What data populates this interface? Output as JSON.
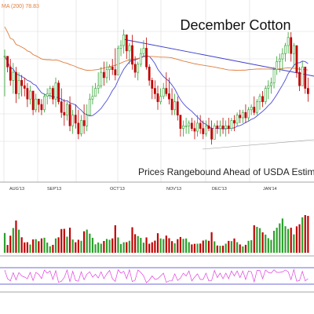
{
  "chart_data": {
    "type": "candlestick",
    "title": "December Cotton",
    "annotation": "Prices Rangebound Ahead of USDA Estimates",
    "legend_text": "MA (200) 78.83",
    "x_ticks": [
      "AUG'13",
      "SEP'13",
      "OCT'13",
      "NOV'13",
      "DEC'13",
      "JAN'14"
    ],
    "grid": true,
    "colors": {
      "up": "#2ca02c",
      "down": "#c00000",
      "ma_long": "#e07b39",
      "ma_short": "#4a4ad8",
      "trendline": "#3a3acc",
      "volume_up": "#2ca02c",
      "volume_down": "#c00000",
      "oscillator": "#e040e0",
      "oscillator_bands": "#3a3acc"
    },
    "series": [
      {
        "name": "price",
        "kind": "ohlc",
        "values": [
          [
            0,
            145,
            110,
            140
          ],
          [
            1,
            140,
            128,
            132
          ],
          [
            2,
            138,
            118,
            122
          ],
          [
            3,
            135,
            112,
            128
          ],
          [
            4,
            132,
            105,
            112
          ],
          [
            5,
            128,
            108,
            122
          ],
          [
            6,
            126,
            110,
            118
          ],
          [
            7,
            124,
            110,
            116
          ],
          [
            8,
            120,
            102,
            108
          ],
          [
            9,
            118,
            104,
            114
          ],
          [
            10,
            114,
            96,
            100
          ],
          [
            11,
            112,
            98,
            108
          ],
          [
            12,
            108,
            98,
            104
          ],
          [
            13,
            108,
            96,
            100
          ],
          [
            14,
            112,
            98,
            110
          ],
          [
            15,
            116,
            104,
            112
          ],
          [
            16,
            118,
            108,
            116
          ],
          [
            17,
            118,
            104,
            108
          ],
          [
            18,
            124,
            102,
            120
          ],
          [
            19,
            122,
            104,
            106
          ],
          [
            20,
            116,
            94,
            98
          ],
          [
            21,
            108,
            88,
            96
          ],
          [
            22,
            106,
            92,
            104
          ],
          [
            23,
            110,
            84,
            88
          ],
          [
            24,
            100,
            82,
            96
          ],
          [
            25,
            104,
            86,
            90
          ],
          [
            26,
            100,
            78,
            82
          ],
          [
            27,
            96,
            80,
            92
          ],
          [
            28,
            104,
            82,
            88
          ],
          [
            29,
            104,
            84,
            96
          ],
          [
            30,
            112,
            96,
            108
          ],
          [
            31,
            118,
            104,
            110
          ],
          [
            32,
            120,
            110,
            116
          ],
          [
            33,
            128,
            112,
            118
          ],
          [
            34,
            132,
            116,
            128
          ],
          [
            35,
            136,
            118,
            124
          ],
          [
            36,
            136,
            120,
            130
          ],
          [
            37,
            134,
            122,
            132
          ],
          [
            38,
            138,
            126,
            130
          ],
          [
            39,
            146,
            122,
            126
          ],
          [
            40,
            148,
            132,
            146
          ],
          [
            41,
            152,
            140,
            148
          ],
          [
            42,
            160,
            142,
            156
          ],
          [
            43,
            156,
            138,
            144
          ],
          [
            44,
            150,
            134,
            148
          ],
          [
            45,
            156,
            130,
            134
          ],
          [
            46,
            140,
            124,
            128
          ],
          [
            47,
            136,
            122,
            134
          ],
          [
            48,
            146,
            132,
            142
          ],
          [
            49,
            152,
            140,
            146
          ],
          [
            50,
            154,
            130,
            132
          ],
          [
            51,
            134,
            118,
            122
          ],
          [
            52,
            124,
            108,
            116
          ],
          [
            53,
            122,
            108,
            112
          ],
          [
            54,
            118,
            100,
            106
          ],
          [
            55,
            116,
            104,
            110
          ],
          [
            56,
            120,
            108,
            116
          ],
          [
            57,
            128,
            110,
            112
          ],
          [
            58,
            124,
            104,
            108
          ],
          [
            59,
            116,
            96,
            100
          ],
          [
            60,
            112,
            96,
            106
          ],
          [
            61,
            110,
            92,
            96
          ],
          [
            62,
            96,
            80,
            86
          ],
          [
            63,
            92,
            80,
            88
          ],
          [
            64,
            94,
            82,
            88
          ],
          [
            65,
            92,
            82,
            90
          ],
          [
            66,
            94,
            84,
            86
          ],
          [
            67,
            92,
            78,
            84
          ],
          [
            68,
            96,
            80,
            90
          ],
          [
            69,
            96,
            82,
            86
          ],
          [
            70,
            92,
            78,
            82
          ],
          [
            71,
            92,
            80,
            88
          ],
          [
            72,
            94,
            84,
            86
          ],
          [
            73,
            92,
            74,
            78
          ],
          [
            74,
            90,
            78,
            88
          ],
          [
            75,
            92,
            82,
            86
          ],
          [
            76,
            92,
            80,
            88
          ],
          [
            77,
            94,
            82,
            86
          ],
          [
            78,
            92,
            80,
            88
          ],
          [
            79,
            94,
            82,
            86
          ],
          [
            80,
            94,
            84,
            92
          ],
          [
            81,
            96,
            84,
            90
          ],
          [
            82,
            98,
            88,
            96
          ],
          [
            83,
            100,
            90,
            94
          ],
          [
            84,
            100,
            90,
            98
          ],
          [
            85,
            104,
            90,
            94
          ],
          [
            86,
            102,
            92,
            100
          ],
          [
            87,
            104,
            96,
            102
          ],
          [
            88,
            110,
            96,
            98
          ],
          [
            89,
            108,
            96,
            106
          ],
          [
            90,
            112,
            100,
            110
          ],
          [
            91,
            114,
            102,
            106
          ],
          [
            92,
            118,
            104,
            116
          ],
          [
            93,
            122,
            108,
            118
          ],
          [
            94,
            124,
            112,
            120
          ],
          [
            95,
            132,
            116,
            130
          ],
          [
            96,
            140,
            126,
            136
          ],
          [
            97,
            142,
            128,
            138
          ],
          [
            98,
            146,
            130,
            142
          ],
          [
            99,
            150,
            136,
            148
          ],
          [
            100,
            158,
            142,
            154
          ],
          [
            101,
            158,
            136,
            142
          ],
          [
            102,
            150,
            132,
            148
          ],
          [
            103,
            146,
            124,
            128
          ],
          [
            104,
            132,
            114,
            118
          ],
          [
            105,
            136,
            118,
            132
          ],
          [
            106,
            132,
            112,
            116
          ],
          [
            107,
            124,
            106,
            112
          ]
        ]
      }
    ]
  }
}
